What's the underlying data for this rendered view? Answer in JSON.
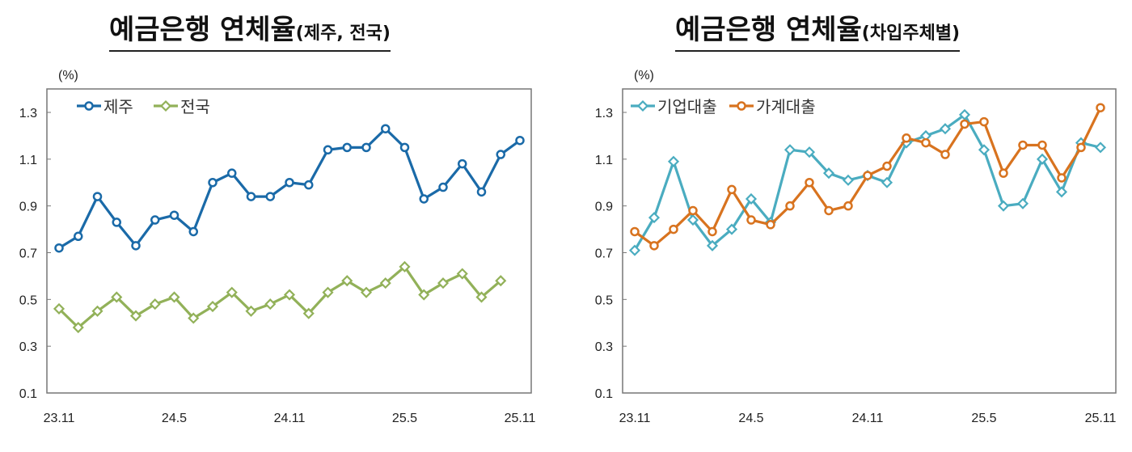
{
  "chart_data": [
    {
      "type": "line",
      "title": "예금은행 연체율",
      "subtitle": "(제주, 전국)",
      "ylabel": "(%)",
      "ylim": [
        0.1,
        1.3
      ],
      "yticks": [
        "0.1",
        "0.3",
        "0.5",
        "0.7",
        "0.9",
        "1.1",
        "1.3"
      ],
      "xtick_labels": [
        "23.11",
        "24.5",
        "24.11",
        "25.5",
        "25.11"
      ],
      "x": [
        "23.11",
        "23.12",
        "24.1",
        "24.2",
        "24.3",
        "24.4",
        "24.5",
        "24.6",
        "24.7",
        "24.8",
        "24.9",
        "24.10",
        "24.11",
        "24.12",
        "25.1",
        "25.2",
        "25.3",
        "25.4",
        "25.5",
        "25.6",
        "25.7",
        "25.8",
        "25.9",
        "25.10",
        "25.11"
      ],
      "grid": false,
      "legend": "top-left",
      "series": [
        {
          "name": "제주",
          "color": "#1a6aa8",
          "marker": "circle",
          "values": [
            0.72,
            0.77,
            0.94,
            0.83,
            0.73,
            0.84,
            0.86,
            0.79,
            1.0,
            1.04,
            0.94,
            0.94,
            1.0,
            0.99,
            1.14,
            1.15,
            1.15,
            1.23,
            1.15,
            0.93,
            0.98,
            1.08,
            0.96,
            1.12,
            1.18
          ]
        },
        {
          "name": "전국",
          "color": "#92b159",
          "marker": "diamond",
          "values": [
            0.46,
            0.38,
            0.45,
            0.51,
            0.43,
            0.48,
            0.51,
            0.42,
            0.47,
            0.53,
            0.45,
            0.48,
            0.52,
            0.44,
            0.53,
            0.58,
            0.53,
            0.57,
            0.64,
            0.52,
            0.57,
            0.61,
            0.51,
            0.58,
            null
          ]
        }
      ]
    },
    {
      "type": "line",
      "title": "예금은행 연체율",
      "subtitle": "(차입주체별)",
      "ylabel": "(%)",
      "ylim": [
        0.1,
        1.3
      ],
      "yticks": [
        "0.1",
        "0.3",
        "0.5",
        "0.7",
        "0.9",
        "1.1",
        "1.3"
      ],
      "xtick_labels": [
        "23.11",
        "24.5",
        "24.11",
        "25.5",
        "25.11"
      ],
      "x": [
        "23.11",
        "23.12",
        "24.1",
        "24.2",
        "24.3",
        "24.4",
        "24.5",
        "24.6",
        "24.7",
        "24.8",
        "24.9",
        "24.10",
        "24.11",
        "24.12",
        "25.1",
        "25.2",
        "25.3",
        "25.4",
        "25.5",
        "25.6",
        "25.7",
        "25.8",
        "25.9",
        "25.10",
        "25.11"
      ],
      "grid": false,
      "legend": "top-left",
      "series": [
        {
          "name": "기업대출",
          "color": "#4aacc0",
          "marker": "diamond",
          "values": [
            0.71,
            0.85,
            1.09,
            0.84,
            0.73,
            0.8,
            0.93,
            0.83,
            1.14,
            1.13,
            1.04,
            1.01,
            1.03,
            1.0,
            1.17,
            1.2,
            1.23,
            1.29,
            1.14,
            0.9,
            0.91,
            1.1,
            0.96,
            1.17,
            1.15
          ]
        },
        {
          "name": "가계대출",
          "color": "#d8731f",
          "marker": "circle",
          "values": [
            0.79,
            0.73,
            0.8,
            0.88,
            0.79,
            0.97,
            0.84,
            0.82,
            0.9,
            1.0,
            0.88,
            0.9,
            1.03,
            1.07,
            1.19,
            1.17,
            1.12,
            1.25,
            1.26,
            1.04,
            1.16,
            1.16,
            1.02,
            1.15,
            1.32
          ]
        }
      ]
    }
  ]
}
